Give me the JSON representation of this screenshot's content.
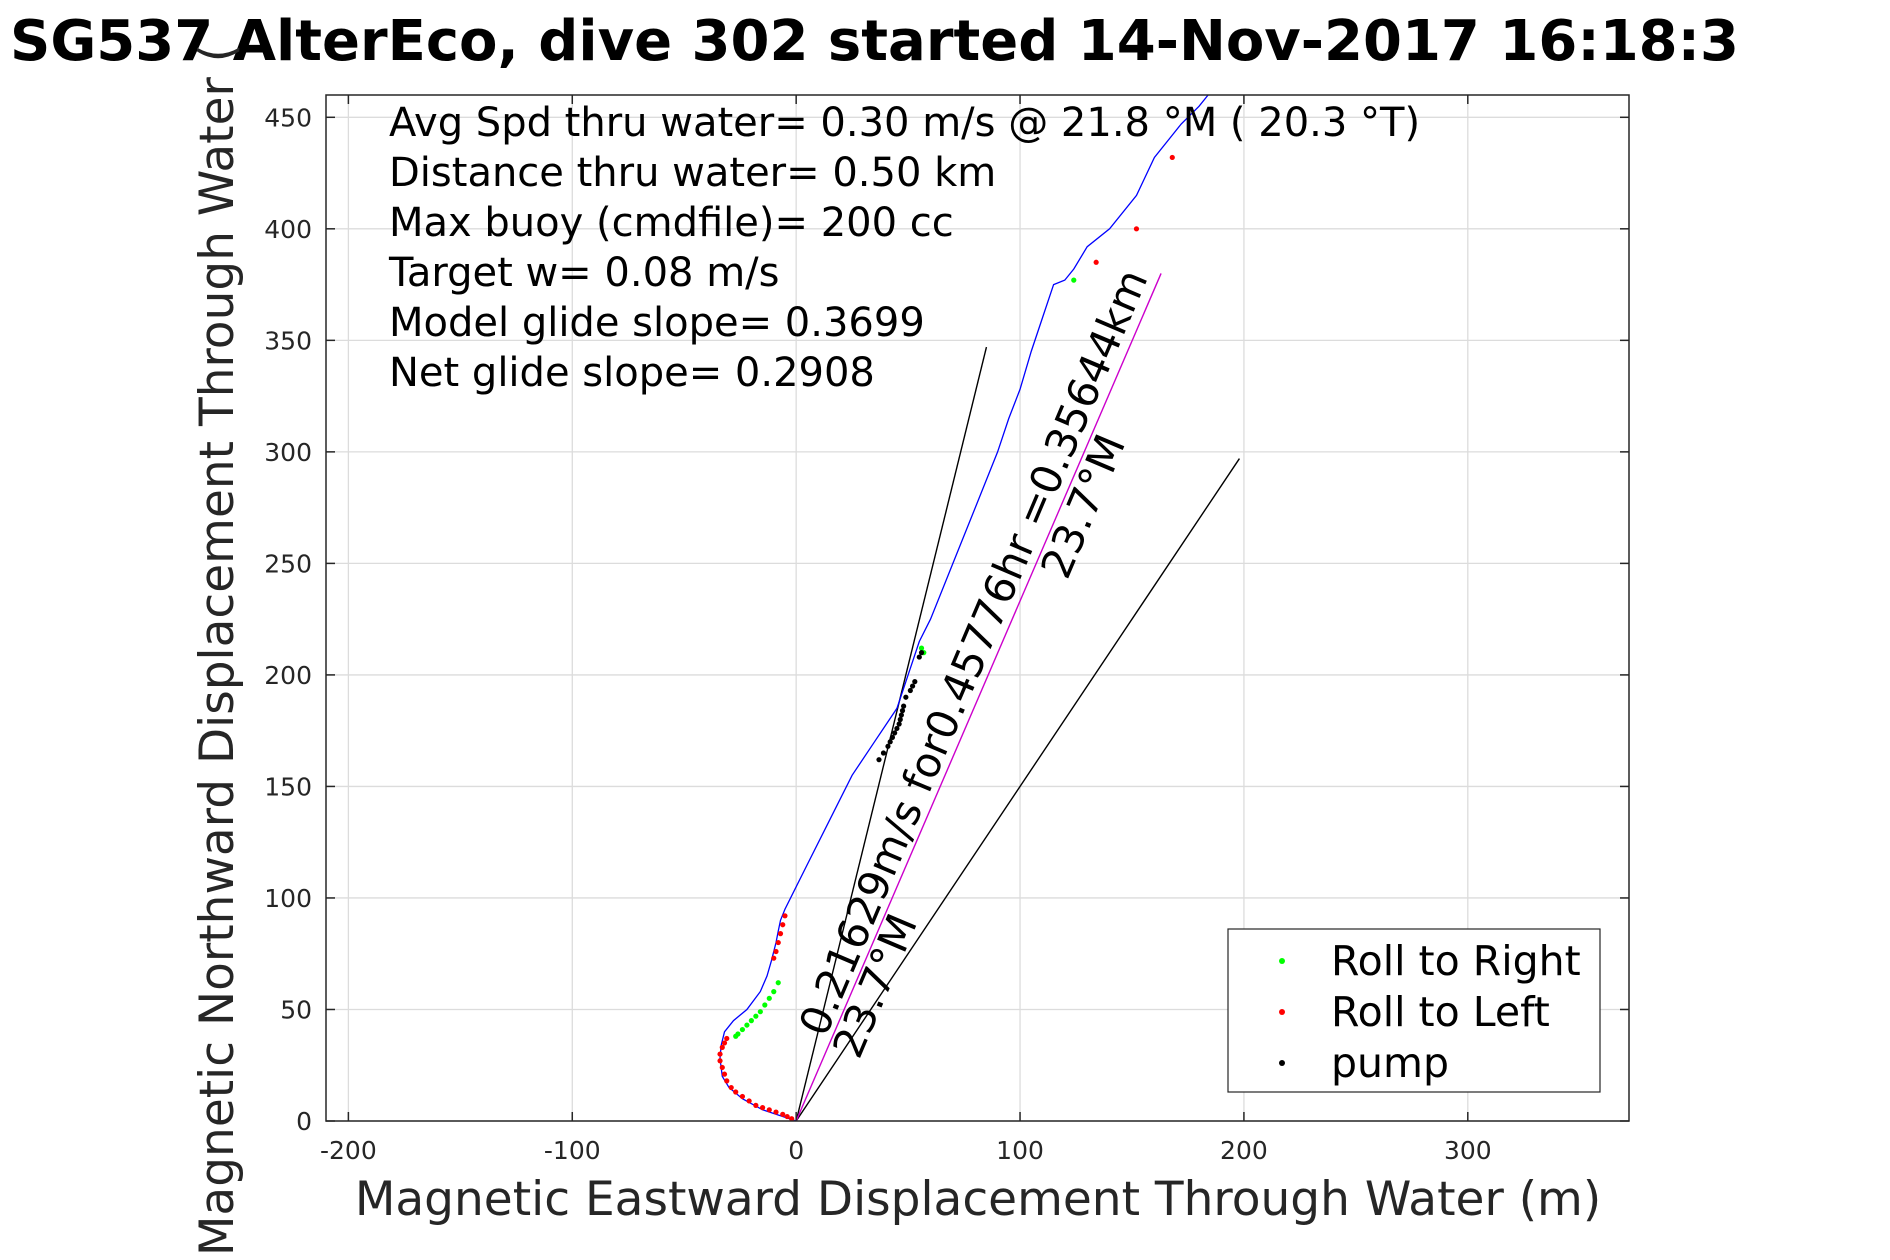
{
  "chart_data": {
    "type": "scatter",
    "title": "SG537 AlterEco, dive 302 started 14-Nov-2017 16:18:3",
    "xlabel": "Magnetic Eastward Displacement Through Water (m)",
    "ylabel": "Magnetic Northward Displacement Through Water (",
    "xlim": [
      -210,
      372
    ],
    "ylim": [
      0,
      460
    ],
    "xticks": [
      -200,
      -100,
      0,
      100,
      200,
      300
    ],
    "xtick_labels": [
      "-200",
      "-100",
      "0",
      "100",
      "200",
      "300"
    ],
    "yticks": [
      0,
      50,
      100,
      150,
      200,
      250,
      300,
      350,
      400,
      450
    ],
    "ytick_labels": [
      "0",
      "50",
      "100",
      "150",
      "200",
      "250",
      "300",
      "350",
      "400",
      "450"
    ],
    "grid": true,
    "stats": [
      "Avg Spd thru water=  0.30 m/s @  21.8 °M ( 20.3 °T)",
      "Distance thru water=  0.50 km",
      "Max buoy (cmdfile)= 200 cc",
      "Target w= 0.08 m/s",
      "Model glide slope= 0.3699",
      "Net glide slope= 0.2908"
    ],
    "track": {
      "name": "glider track",
      "color": "#0000ff",
      "x": [
        0,
        -6,
        -15,
        -24,
        -30,
        -33,
        -34,
        -33.5,
        -32,
        -28,
        -22,
        -16,
        -13,
        -11,
        -9,
        -8,
        -7,
        -5,
        5,
        15,
        25,
        35,
        45,
        50,
        55,
        60,
        70,
        80,
        90,
        95,
        100,
        105,
        110,
        115,
        120,
        124,
        130,
        140,
        152,
        160,
        168,
        172,
        180,
        184
      ],
      "y": [
        0,
        2,
        5,
        10,
        15,
        20,
        28,
        34,
        40,
        45,
        50,
        58,
        65,
        72,
        80,
        85,
        90,
        95,
        115,
        135,
        155,
        170,
        185,
        200,
        215,
        225,
        250,
        275,
        300,
        315,
        328,
        345,
        360,
        375,
        377,
        382,
        392,
        400,
        415,
        432,
        442,
        447,
        455,
        460
      ]
    },
    "series": [
      {
        "name": "Roll to Right",
        "color": "#00ff00",
        "x": [
          -8,
          -10,
          -12,
          -14,
          -16,
          -18,
          -20,
          -22,
          -24,
          -26,
          -27,
          124,
          56,
          57
        ],
        "y": [
          62,
          58,
          55,
          52,
          49,
          47,
          45,
          43,
          41,
          39,
          38,
          377,
          212,
          210
        ]
      },
      {
        "name": "Roll to Left",
        "color": "#ff0000",
        "x": [
          -2,
          -4,
          -6,
          -9,
          -12,
          -15,
          -18,
          -21,
          -24,
          -27,
          -29,
          -31,
          -32,
          -33,
          -34,
          -34,
          -33,
          -32,
          -31,
          -5,
          -6,
          -7,
          -8,
          -9,
          -10,
          134,
          152,
          168
        ],
        "y": [
          1,
          2,
          3,
          4,
          5,
          6,
          7,
          9,
          11,
          13,
          15,
          18,
          21,
          24,
          27,
          30,
          33,
          35,
          37,
          92,
          88,
          84,
          80,
          76,
          73,
          385,
          400,
          432
        ]
      },
      {
        "name": "pump",
        "color": "#000000",
        "x": [
          37,
          39,
          41,
          42,
          43,
          44,
          45,
          46,
          46.5,
          47,
          47.5,
          48,
          49,
          51,
          52,
          53,
          55,
          56
        ],
        "y": [
          162,
          165,
          168,
          170,
          172,
          174,
          176,
          178,
          180,
          182,
          184,
          186,
          190,
          193,
          195,
          197,
          208,
          210
        ]
      }
    ],
    "reference_lines": [
      {
        "from": [
          0,
          0
        ],
        "to": [
          85,
          347
        ],
        "color": "#000000"
      },
      {
        "from": [
          0,
          0
        ],
        "to": [
          198,
          297
        ],
        "color": "#000000"
      },
      {
        "from": [
          0,
          0
        ],
        "to": [
          163,
          380
        ],
        "color": "#cc00cc"
      }
    ],
    "annotations": [
      {
        "text": "0.21629m/s for0.45776hr =0.35644km",
        "x": 13,
        "y": 37,
        "angle": -67
      },
      {
        "text": "23.7°M",
        "x": 28,
        "y": 27,
        "angle": -67
      },
      {
        "text": "23.7°M",
        "x": 121,
        "y": 242,
        "angle": -67
      }
    ],
    "legend": {
      "position": "bottom-right",
      "entries": [
        {
          "label": "Roll to Right",
          "color": "#00ff00"
        },
        {
          "label": "Roll to Left",
          "color": "#ff0000"
        },
        {
          "label": "pump",
          "color": "#000000"
        }
      ]
    }
  }
}
